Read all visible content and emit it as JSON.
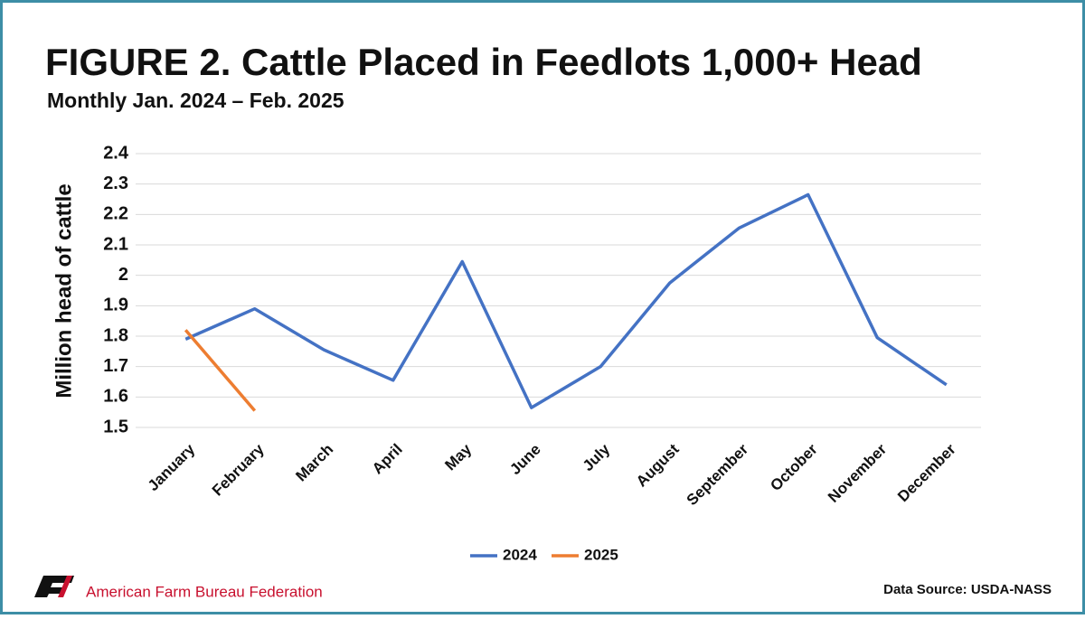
{
  "chart_data": {
    "type": "line",
    "title": "FIGURE 2. Cattle Placed in Feedlots 1,000+ Head",
    "subtitle": "Monthly Jan. 2024 – Feb. 2025",
    "y_label": "Million head of cattle",
    "categories": [
      "January",
      "February",
      "March",
      "April",
      "May",
      "June",
      "July",
      "August",
      "September",
      "October",
      "November",
      "December"
    ],
    "series": [
      {
        "name": "2024",
        "color": "#4472c4",
        "values": [
          1.79,
          1.89,
          1.755,
          1.655,
          2.045,
          1.565,
          1.7,
          1.975,
          2.155,
          2.265,
          1.795,
          1.64
        ]
      },
      {
        "name": "2025",
        "color": "#ed7d31",
        "values": [
          1.82,
          1.555,
          null,
          null,
          null,
          null,
          null,
          null,
          null,
          null,
          null,
          null
        ]
      }
    ],
    "ylim": [
      1.5,
      2.4
    ],
    "yticks": [
      1.5,
      1.6,
      1.7,
      1.8,
      1.9,
      2,
      2.1,
      2.2,
      2.3,
      2.4
    ],
    "grid": true,
    "legend": "bottom"
  },
  "footer": {
    "organization": "American Farm Bureau Federation",
    "source": "Data Source:  USDA-NASS"
  }
}
